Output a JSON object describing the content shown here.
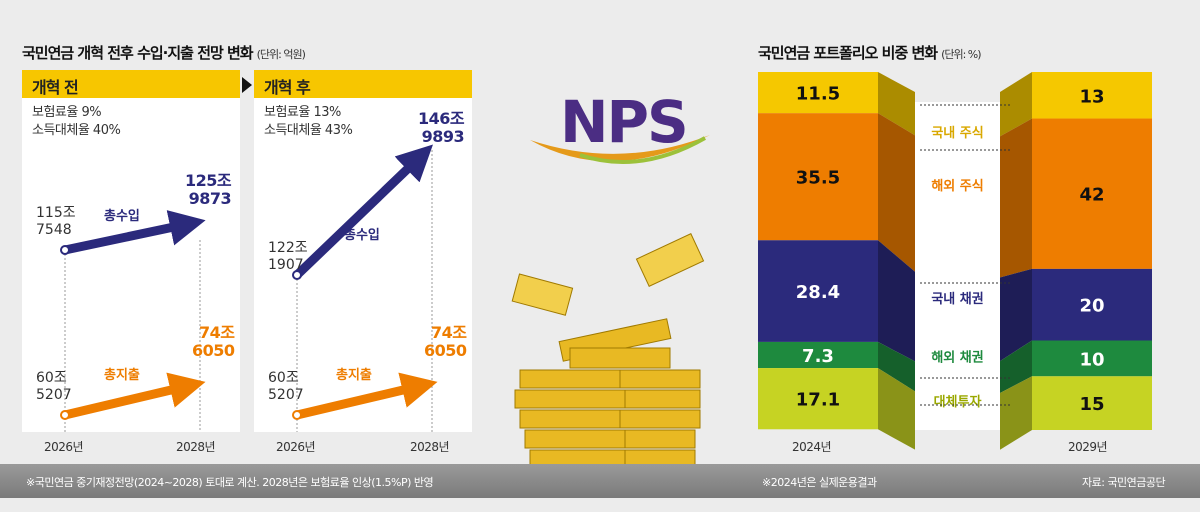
{
  "left": {
    "title": "국민연금 개혁 전후 수입·지출 전망 변화",
    "unit": "(단위: 억원)",
    "before": {
      "header": "개혁 전",
      "info": [
        "보험료율 9%",
        "소득대체율 40%"
      ],
      "revenue": {
        "label": "총수입",
        "start": [
          "115조",
          "7548"
        ],
        "end": [
          "125조",
          "9873"
        ]
      },
      "expense": {
        "label": "총지출",
        "start": [
          "60조",
          "5207"
        ],
        "end": [
          "74조",
          "6050"
        ]
      }
    },
    "after": {
      "header": "개혁 후",
      "info": [
        "보험료율 13%",
        "소득대체율 43%"
      ],
      "revenue": {
        "label": "총수입",
        "start": [
          "122조",
          "1907"
        ],
        "end": [
          "146조",
          "9893"
        ]
      },
      "expense": {
        "label": "총지출",
        "start": [
          "60조",
          "5207"
        ],
        "end": [
          "74조",
          "6050"
        ]
      }
    },
    "years": [
      "2026년",
      "2028년",
      "2026년",
      "2028년"
    ],
    "footnote": "※국민연금 중기재정전망(2024~2028) 토대로 계산. 2028년은 보험료율 인상(1.5%P) 반영"
  },
  "logo": {
    "text": "NPS"
  },
  "chart_data": {
    "type": "bar",
    "title": "국민연금 포트폴리오 비중 변화",
    "unit": "(단위: %)",
    "categories": [
      "2024년",
      "2029년"
    ],
    "series": [
      {
        "name": "국내 주식",
        "values": [
          11.5,
          13
        ],
        "color": "#f5c800"
      },
      {
        "name": "해외 주식",
        "values": [
          35.5,
          42
        ],
        "color": "#ee7d00"
      },
      {
        "name": "국내 채권",
        "values": [
          28.4,
          20
        ],
        "color": "#2b2a7c"
      },
      {
        "name": "해외 채권",
        "values": [
          7.3,
          10
        ],
        "color": "#1e8a3e"
      },
      {
        "name": "대체투자",
        "values": [
          17.1,
          15
        ],
        "color": "#c6d323"
      }
    ],
    "stacked": true,
    "ylim": [
      0,
      100
    ],
    "labelColors": [
      "#d9a800",
      "#ee7d00",
      "#2b2a7c",
      "#1e8a3e",
      "#9aa800"
    ],
    "footnote": "※2024년은 실제운용결과",
    "source": "자료: 국민연금공단"
  }
}
